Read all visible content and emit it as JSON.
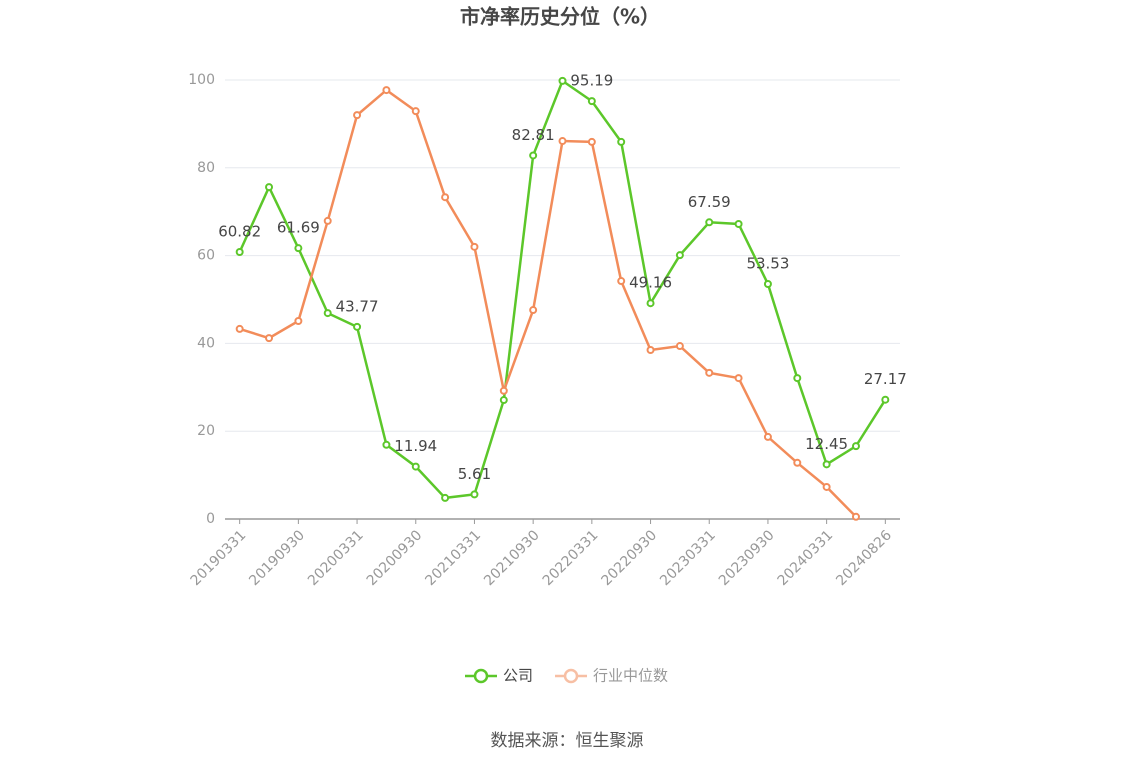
{
  "chart_data": {
    "type": "line",
    "title": "市净率历史分位（%）",
    "categories": [
      "20190331",
      null,
      "20190930",
      null,
      "20200331",
      null,
      "20200930",
      null,
      "20210331",
      null,
      "20210930",
      null,
      "20220331",
      null,
      "20220930",
      null,
      "20230331",
      null,
      "20230930",
      null,
      "20240331",
      null,
      "20240826"
    ],
    "series": [
      {
        "name": "公司",
        "color": "#5cc72a",
        "values": [
          60.82,
          75.6,
          61.69,
          46.9,
          43.77,
          16.9,
          11.94,
          4.8,
          5.61,
          27.1,
          82.81,
          99.8,
          95.19,
          85.9,
          49.16,
          60.1,
          67.59,
          67.2,
          53.53,
          32.1,
          12.45,
          16.6,
          27.17
        ],
        "value_labels": [
          "60.82",
          null,
          "61.69",
          null,
          "43.77",
          null,
          "11.94",
          null,
          "5.61",
          null,
          "82.81",
          null,
          "95.19",
          null,
          "49.16",
          null,
          "67.59",
          null,
          "53.53",
          null,
          "12.45",
          null,
          "27.17"
        ]
      },
      {
        "name": "行业中位数",
        "color": "#f28c5a",
        "values": [
          43.3,
          41.2,
          45.1,
          67.9,
          92.0,
          97.7,
          92.9,
          73.3,
          62.0,
          29.2,
          47.6,
          86.1,
          85.9,
          54.2,
          38.5,
          39.4,
          33.3,
          32.1,
          18.7,
          12.8,
          7.3,
          0.5,
          null
        ]
      }
    ],
    "ylim": [
      0,
      100
    ],
    "yticks": [
      0,
      20,
      40,
      60,
      80,
      100
    ],
    "grid": true,
    "legend": "bottom",
    "source": "数据来源：恒生聚源"
  }
}
